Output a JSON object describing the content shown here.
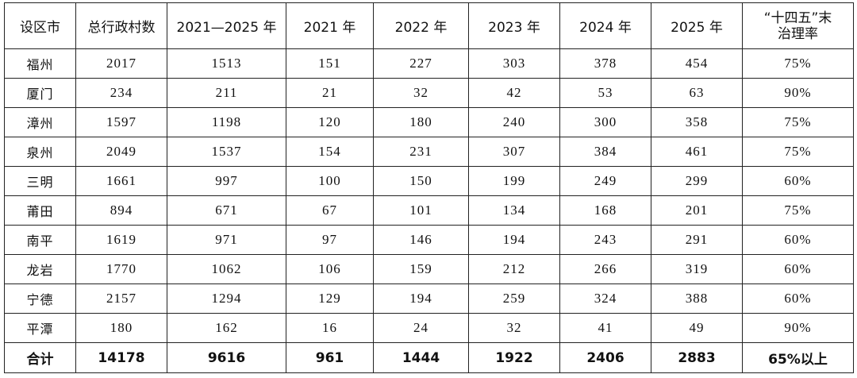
{
  "table": {
    "header": [
      "设区市",
      "总行政村数",
      "2021—2025 年",
      "2021 年",
      "2022 年",
      "2023 年",
      "2024 年",
      "2025 年",
      "“十四五”末治理率"
    ],
    "rows": [
      [
        "福州",
        2017,
        1513,
        151,
        227,
        303,
        378,
        454,
        "75%"
      ],
      [
        "厦门",
        234,
        211,
        21,
        32,
        42,
        53,
        63,
        "90%"
      ],
      [
        "漳州",
        1597,
        1198,
        120,
        180,
        240,
        300,
        358,
        "75%"
      ],
      [
        "泉州",
        2049,
        1537,
        154,
        231,
        307,
        384,
        461,
        "75%"
      ],
      [
        "三明",
        1661,
        997,
        100,
        150,
        199,
        249,
        299,
        "60%"
      ],
      [
        "莆田",
        894,
        671,
        67,
        101,
        134,
        168,
        201,
        "75%"
      ],
      [
        "南平",
        1619,
        971,
        97,
        146,
        194,
        243,
        291,
        "60%"
      ],
      [
        "龙岩",
        1770,
        1062,
        106,
        159,
        212,
        266,
        319,
        "60%"
      ],
      [
        "宁德",
        2157,
        1294,
        129,
        194,
        259,
        324,
        388,
        "60%"
      ],
      [
        "平潭",
        180,
        162,
        16,
        24,
        32,
        41,
        49,
        "90%"
      ]
    ],
    "total": [
      "合计",
      14178,
      9616,
      961,
      1444,
      1922,
      2406,
      2883,
      "65%以上"
    ]
  }
}
